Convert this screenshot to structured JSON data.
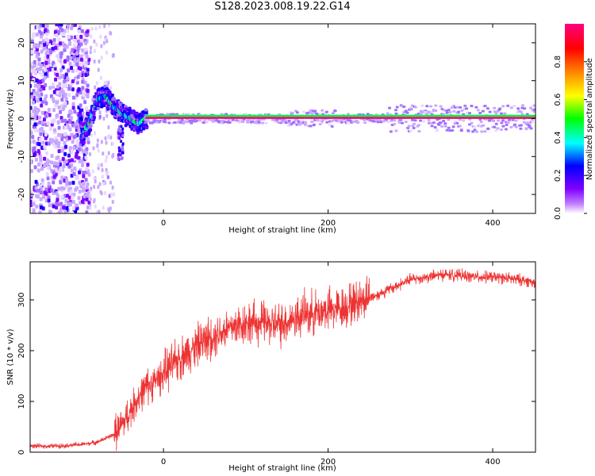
{
  "title": "S128.2023.008.19.22.G14",
  "chart_data": [
    {
      "type": "heatmap",
      "xlabel": "Height of straight line (km)",
      "ylabel": "Frequency (Hz)",
      "xlim": [
        -162,
        452
      ],
      "ylim": [
        -25,
        25
      ],
      "xticks": [
        0,
        200,
        400
      ],
      "yticks": [
        -20,
        -10,
        0,
        10,
        20
      ],
      "colorbar": {
        "label": "Normalized spectral amplitude",
        "range": [
          0,
          1
        ],
        "ticks": [
          0.0,
          0.2,
          0.4,
          0.6,
          0.8
        ],
        "colormap": [
          "#ffffff",
          "#8000ff",
          "#0000ff",
          "#00ffff",
          "#00ff00",
          "#ffff00",
          "#ff8000",
          "#ff0000",
          "#ff0080"
        ]
      },
      "signal_trace": [
        {
          "x": -100,
          "y": -5
        },
        {
          "x": -90,
          "y": -1
        },
        {
          "x": -80,
          "y": 5
        },
        {
          "x": -70,
          "y": 6
        },
        {
          "x": -60,
          "y": 3
        },
        {
          "x": -50,
          "y": 1.5
        },
        {
          "x": -40,
          "y": 0
        },
        {
          "x": -30,
          "y": -1.5
        },
        {
          "x": -22,
          "y": 0
        },
        {
          "x": 0,
          "y": 0
        },
        {
          "x": 200,
          "y": 0
        },
        {
          "x": 452,
          "y": 0
        }
      ]
    },
    {
      "type": "line",
      "xlabel": "Height of straight line (km)",
      "ylabel": "SNR (10 * v/v)",
      "xlim": [
        -162,
        452
      ],
      "ylim": [
        0,
        375
      ],
      "xticks": [
        0,
        200,
        400
      ],
      "yticks": [
        0,
        100,
        200,
        300
      ],
      "series": [
        {
          "name": "SNR",
          "color": "#ee3333",
          "x": [
            -162,
            -140,
            -120,
            -100,
            -80,
            -60,
            -50,
            -40,
            -30,
            -20,
            -10,
            0,
            10,
            20,
            40,
            60,
            80,
            100,
            120,
            140,
            160,
            180,
            200,
            220,
            240,
            260,
            280,
            300,
            320,
            340,
            360,
            380,
            400,
            420,
            440,
            452
          ],
          "values": [
            12,
            12,
            13,
            15,
            20,
            35,
            55,
            80,
            110,
            130,
            140,
            155,
            170,
            185,
            210,
            230,
            245,
            255,
            255,
            250,
            265,
            275,
            280,
            285,
            300,
            310,
            325,
            340,
            345,
            350,
            348,
            345,
            345,
            342,
            338,
            335
          ]
        }
      ]
    }
  ]
}
